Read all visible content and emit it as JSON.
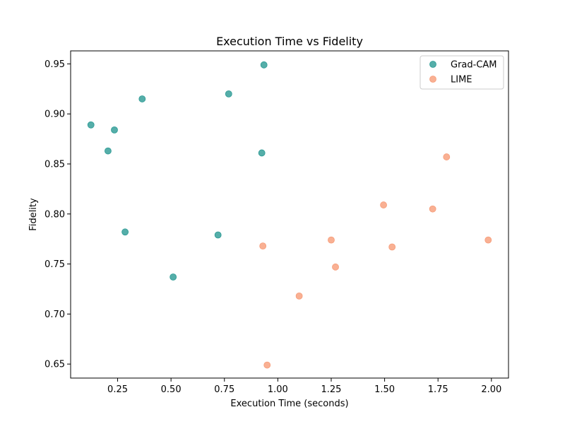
{
  "chart_data": {
    "type": "scatter",
    "title": "Execution Time vs Fidelity",
    "xlabel": "Execution Time (seconds)",
    "ylabel": "Fidelity",
    "xlim": [
      0.03,
      2.08
    ],
    "ylim": [
      0.636,
      0.963
    ],
    "xticks": [
      0.25,
      0.5,
      0.75,
      1.0,
      1.25,
      1.5,
      1.75,
      2.0
    ],
    "xtick_labels": [
      "0.25",
      "0.50",
      "0.75",
      "1.00",
      "1.25",
      "1.50",
      "1.75",
      "2.00"
    ],
    "yticks": [
      0.65,
      0.7,
      0.75,
      0.8,
      0.85,
      0.9,
      0.95
    ],
    "ytick_labels": [
      "0.65",
      "0.70",
      "0.75",
      "0.80",
      "0.85",
      "0.90",
      "0.95"
    ],
    "grid": false,
    "legend_position": "top-right",
    "series": [
      {
        "name": "Grad-CAM",
        "color": "#2a9a94",
        "x": [
          0.125,
          0.235,
          0.205,
          0.365,
          0.285,
          0.51,
          0.72,
          0.77,
          0.925,
          0.935
        ],
        "y": [
          0.889,
          0.884,
          0.863,
          0.915,
          0.782,
          0.737,
          0.779,
          0.92,
          0.861,
          0.949
        ]
      },
      {
        "name": "LIME",
        "color": "#f79c78",
        "x": [
          0.93,
          0.95,
          1.1,
          1.25,
          1.27,
          1.495,
          1.535,
          1.725,
          1.79,
          1.985
        ],
        "y": [
          0.768,
          0.649,
          0.718,
          0.774,
          0.747,
          0.809,
          0.767,
          0.805,
          0.857,
          0.774
        ]
      }
    ]
  }
}
